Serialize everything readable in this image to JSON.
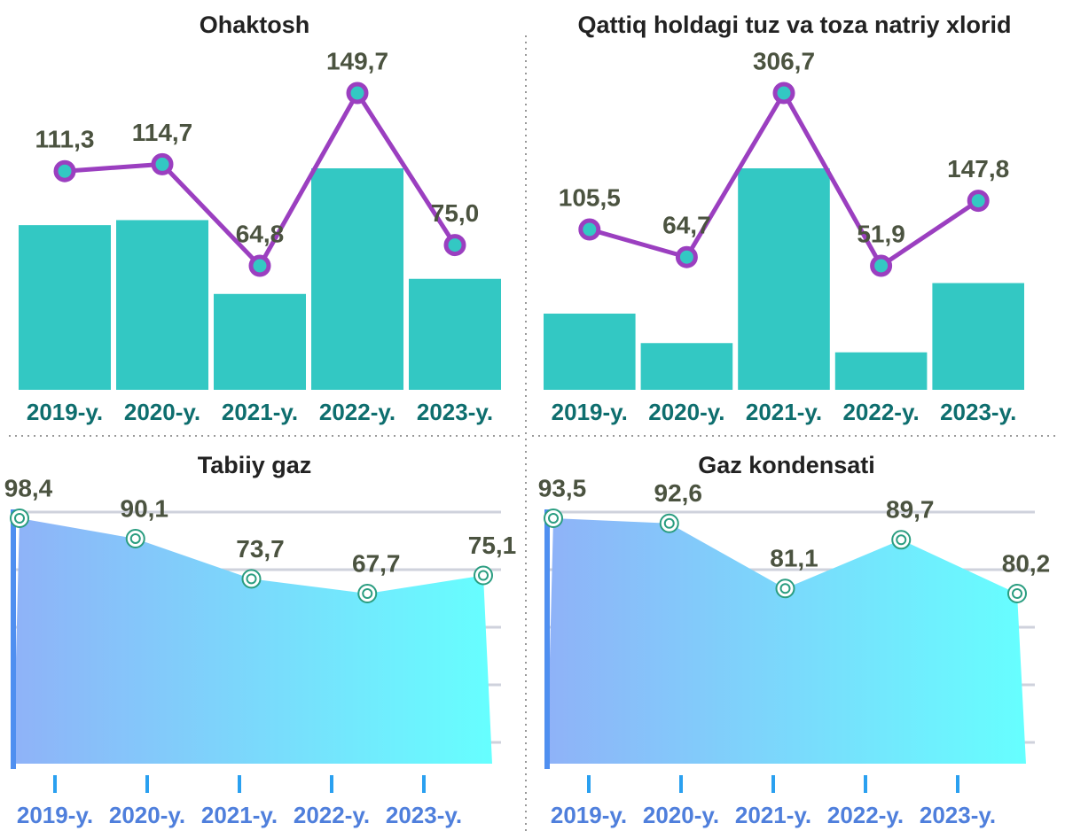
{
  "chart_data": [
    {
      "type": "bar_line",
      "title": "Ohaktosh",
      "categories": [
        "2019-y.",
        "2020-y.",
        "2021-y.",
        "2022-y.",
        "2023-y."
      ],
      "values": [
        111.3,
        114.7,
        64.8,
        149.7,
        75.0
      ],
      "value_labels": [
        "111,3",
        "114,7",
        "64,8",
        "149,7",
        "75,0"
      ],
      "bar_color": "#33c8c3",
      "line_color": "#9b3fc0"
    },
    {
      "type": "bar_line",
      "title": "Qattiq holdagi tuz va toza natriy xlorid",
      "categories": [
        "2019-y.",
        "2020-y.",
        "2021-y.",
        "2022-y.",
        "2023-y."
      ],
      "values": [
        105.5,
        64.7,
        306.7,
        51.9,
        147.8
      ],
      "value_labels": [
        "105,5",
        "64,7",
        "306,7",
        "51,9",
        "147,8"
      ],
      "bar_color": "#33c8c3",
      "line_color": "#9b3fc0"
    },
    {
      "type": "area",
      "title": "Tabiiy gaz",
      "categories": [
        "2019-y.",
        "2020-y.",
        "2021-y.",
        "2022-y.",
        "2023-y."
      ],
      "values": [
        98.4,
        90.1,
        73.7,
        67.7,
        75.1
      ],
      "value_labels": [
        "98,4",
        "90,1",
        "73,7",
        "67,7",
        "75,1"
      ],
      "colors": [
        "#8fb2f8",
        "#66ffff"
      ]
    },
    {
      "type": "area",
      "title": "Gaz kondensati",
      "categories": [
        "2019-y.",
        "2020-y.",
        "2021-y.",
        "2022-y.",
        "2023-y."
      ],
      "values": [
        93.5,
        92.6,
        81.1,
        89.7,
        80.2
      ],
      "value_labels": [
        "93,5",
        "92,6",
        "81,1",
        "89,7",
        "80,2"
      ],
      "colors": [
        "#8fb2f8",
        "#66ffff"
      ]
    }
  ]
}
